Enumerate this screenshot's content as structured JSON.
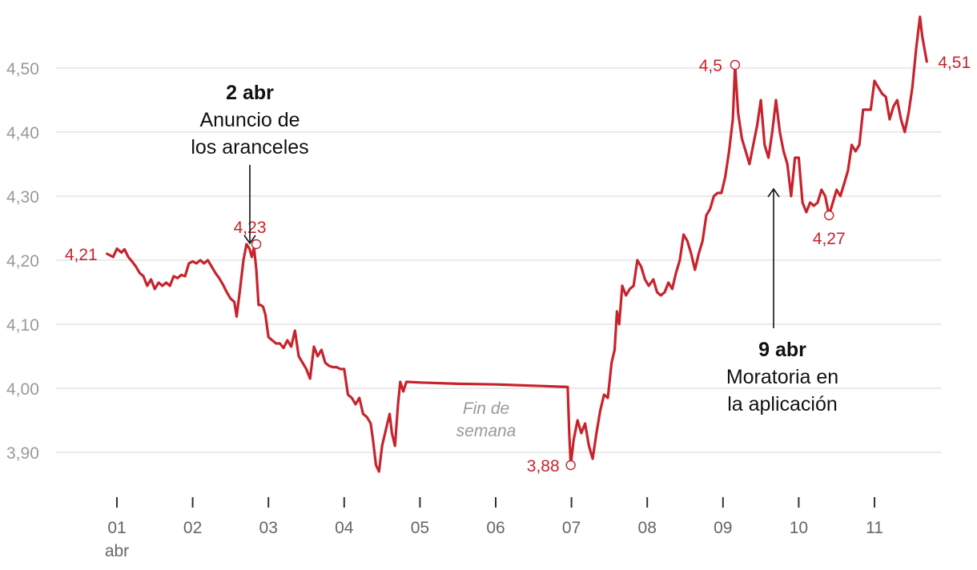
{
  "chart_data": {
    "type": "line",
    "title": "",
    "xlabel": "",
    "ylabel": "",
    "ylim": [
      3.83,
      4.56
    ],
    "y_ticks": [
      {
        "value": 3.9,
        "label": "3,90"
      },
      {
        "value": 4.0,
        "label": "4,00"
      },
      {
        "value": 4.1,
        "label": "4,10"
      },
      {
        "value": 4.2,
        "label": "4,20"
      },
      {
        "value": 4.3,
        "label": "4,30"
      },
      {
        "value": 4.4,
        "label": "4,40"
      },
      {
        "value": 4.5,
        "label": "4,50"
      }
    ],
    "x_ticks": [
      {
        "day": 1,
        "label": "01",
        "sublabel": "abr"
      },
      {
        "day": 2,
        "label": "02",
        "sublabel": ""
      },
      {
        "day": 3,
        "label": "03",
        "sublabel": ""
      },
      {
        "day": 4,
        "label": "04",
        "sublabel": ""
      },
      {
        "day": 5,
        "label": "05",
        "sublabel": ""
      },
      {
        "day": 6,
        "label": "06",
        "sublabel": ""
      },
      {
        "day": 7,
        "label": "07",
        "sublabel": ""
      },
      {
        "day": 8,
        "label": "08",
        "sublabel": ""
      },
      {
        "day": 9,
        "label": "09",
        "sublabel": ""
      },
      {
        "day": 10,
        "label": "10",
        "sublabel": ""
      },
      {
        "day": 11,
        "label": "11",
        "sublabel": ""
      }
    ],
    "series": [
      {
        "color": "#c8232c",
        "points": [
          [
            0.87,
            4.21
          ],
          [
            0.95,
            4.205
          ],
          [
            1.0,
            4.218
          ],
          [
            1.06,
            4.212
          ],
          [
            1.1,
            4.217
          ],
          [
            1.15,
            4.205
          ],
          [
            1.2,
            4.198
          ],
          [
            1.25,
            4.19
          ],
          [
            1.3,
            4.18
          ],
          [
            1.35,
            4.175
          ],
          [
            1.4,
            4.16
          ],
          [
            1.45,
            4.17
          ],
          [
            1.5,
            4.155
          ],
          [
            1.55,
            4.165
          ],
          [
            1.6,
            4.16
          ],
          [
            1.65,
            4.165
          ],
          [
            1.7,
            4.16
          ],
          [
            1.75,
            4.175
          ],
          [
            1.8,
            4.172
          ],
          [
            1.85,
            4.177
          ],
          [
            1.9,
            4.175
          ],
          [
            1.95,
            4.195
          ],
          [
            2.0,
            4.198
          ],
          [
            2.05,
            4.195
          ],
          [
            2.1,
            4.2
          ],
          [
            2.15,
            4.195
          ],
          [
            2.2,
            4.2
          ],
          [
            2.25,
            4.19
          ],
          [
            2.3,
            4.18
          ],
          [
            2.35,
            4.172
          ],
          [
            2.4,
            4.162
          ],
          [
            2.45,
            4.15
          ],
          [
            2.5,
            4.14
          ],
          [
            2.55,
            4.135
          ],
          [
            2.58,
            4.112
          ],
          [
            2.62,
            4.15
          ],
          [
            2.67,
            4.2
          ],
          [
            2.71,
            4.225
          ],
          [
            2.75,
            4.218
          ],
          [
            2.78,
            4.205
          ],
          [
            2.81,
            4.22
          ],
          [
            2.84,
            4.185
          ],
          [
            2.87,
            4.13
          ],
          [
            2.9,
            4.13
          ],
          [
            2.93,
            4.127
          ],
          [
            2.96,
            4.115
          ],
          [
            3.0,
            4.08
          ],
          [
            3.05,
            4.075
          ],
          [
            3.1,
            4.07
          ],
          [
            3.15,
            4.07
          ],
          [
            3.2,
            4.063
          ],
          [
            3.25,
            4.075
          ],
          [
            3.3,
            4.065
          ],
          [
            3.35,
            4.09
          ],
          [
            3.4,
            4.05
          ],
          [
            3.45,
            4.04
          ],
          [
            3.5,
            4.03
          ],
          [
            3.55,
            4.015
          ],
          [
            3.6,
            4.065
          ],
          [
            3.65,
            4.05
          ],
          [
            3.7,
            4.06
          ],
          [
            3.75,
            4.04
          ],
          [
            3.8,
            4.035
          ],
          [
            3.85,
            4.033
          ],
          [
            3.9,
            4.033
          ],
          [
            3.95,
            4.03
          ],
          [
            4.0,
            4.03
          ],
          [
            4.05,
            3.99
          ],
          [
            4.1,
            3.985
          ],
          [
            4.15,
            3.975
          ],
          [
            4.2,
            3.985
          ],
          [
            4.25,
            3.96
          ],
          [
            4.3,
            3.955
          ],
          [
            4.35,
            3.945
          ],
          [
            4.38,
            3.92
          ],
          [
            4.42,
            3.88
          ],
          [
            4.46,
            3.87
          ],
          [
            4.5,
            3.91
          ],
          [
            4.55,
            3.935
          ],
          [
            4.6,
            3.96
          ],
          [
            4.63,
            3.93
          ],
          [
            4.67,
            3.91
          ],
          [
            4.71,
            3.975
          ],
          [
            4.74,
            4.01
          ],
          [
            4.78,
            3.995
          ],
          [
            4.82,
            4.01
          ],
          [
            5.0,
            4.009
          ],
          [
            5.5,
            4.007
          ],
          [
            6.0,
            4.006
          ],
          [
            6.5,
            4.004
          ],
          [
            6.95,
            4.002
          ],
          [
            6.97,
            3.93
          ],
          [
            6.99,
            3.88
          ],
          [
            7.03,
            3.92
          ],
          [
            7.08,
            3.95
          ],
          [
            7.13,
            3.93
          ],
          [
            7.18,
            3.945
          ],
          [
            7.23,
            3.91
          ],
          [
            7.28,
            3.89
          ],
          [
            7.33,
            3.93
          ],
          [
            7.38,
            3.965
          ],
          [
            7.43,
            3.99
          ],
          [
            7.48,
            3.985
          ],
          [
            7.53,
            4.04
          ],
          [
            7.57,
            4.06
          ],
          [
            7.6,
            4.12
          ],
          [
            7.63,
            4.1
          ],
          [
            7.67,
            4.16
          ],
          [
            7.72,
            4.145
          ],
          [
            7.77,
            4.155
          ],
          [
            7.82,
            4.16
          ],
          [
            7.87,
            4.2
          ],
          [
            7.92,
            4.19
          ],
          [
            7.97,
            4.17
          ],
          [
            8.02,
            4.16
          ],
          [
            8.08,
            4.17
          ],
          [
            8.13,
            4.15
          ],
          [
            8.18,
            4.145
          ],
          [
            8.23,
            4.15
          ],
          [
            8.28,
            4.165
          ],
          [
            8.33,
            4.155
          ],
          [
            8.38,
            4.18
          ],
          [
            8.43,
            4.2
          ],
          [
            8.48,
            4.24
          ],
          [
            8.53,
            4.23
          ],
          [
            8.58,
            4.21
          ],
          [
            8.63,
            4.185
          ],
          [
            8.68,
            4.21
          ],
          [
            8.73,
            4.23
          ],
          [
            8.78,
            4.27
          ],
          [
            8.83,
            4.28
          ],
          [
            8.88,
            4.3
          ],
          [
            8.93,
            4.305
          ],
          [
            8.98,
            4.305
          ],
          [
            9.03,
            4.33
          ],
          [
            9.08,
            4.37
          ],
          [
            9.13,
            4.42
          ],
          [
            9.16,
            4.505
          ],
          [
            9.2,
            4.43
          ],
          [
            9.25,
            4.39
          ],
          [
            9.3,
            4.37
          ],
          [
            9.35,
            4.35
          ],
          [
            9.4,
            4.38
          ],
          [
            9.45,
            4.41
          ],
          [
            9.5,
            4.45
          ],
          [
            9.55,
            4.38
          ],
          [
            9.6,
            4.36
          ],
          [
            9.65,
            4.4
          ],
          [
            9.7,
            4.45
          ],
          [
            9.75,
            4.4
          ],
          [
            9.8,
            4.37
          ],
          [
            9.85,
            4.35
          ],
          [
            9.9,
            4.3
          ],
          [
            9.95,
            4.36
          ],
          [
            10.0,
            4.36
          ],
          [
            10.05,
            4.29
          ],
          [
            10.1,
            4.275
          ],
          [
            10.15,
            4.29
          ],
          [
            10.2,
            4.285
          ],
          [
            10.25,
            4.29
          ],
          [
            10.3,
            4.31
          ],
          [
            10.35,
            4.3
          ],
          [
            10.4,
            4.27
          ],
          [
            10.45,
            4.29
          ],
          [
            10.5,
            4.31
          ],
          [
            10.55,
            4.3
          ],
          [
            10.6,
            4.32
          ],
          [
            10.65,
            4.34
          ],
          [
            10.7,
            4.38
          ],
          [
            10.75,
            4.37
          ],
          [
            10.8,
            4.38
          ],
          [
            10.85,
            4.435
          ],
          [
            10.9,
            4.435
          ],
          [
            10.95,
            4.435
          ],
          [
            11.0,
            4.48
          ],
          [
            11.05,
            4.47
          ],
          [
            11.1,
            4.46
          ],
          [
            11.15,
            4.455
          ],
          [
            11.2,
            4.42
          ],
          [
            11.25,
            4.44
          ],
          [
            11.3,
            4.45
          ],
          [
            11.35,
            4.42
          ],
          [
            11.4,
            4.4
          ],
          [
            11.45,
            4.43
          ],
          [
            11.5,
            4.47
          ],
          [
            11.55,
            4.53
          ],
          [
            11.6,
            4.58
          ],
          [
            11.63,
            4.55
          ],
          [
            11.66,
            4.53
          ],
          [
            11.69,
            4.51
          ]
        ]
      }
    ],
    "value_labels": [
      {
        "x": 0.87,
        "y": 4.21,
        "text": "4,21",
        "marker": false
      },
      {
        "x": 2.84,
        "y": 4.225,
        "text": "4,23",
        "marker": true
      },
      {
        "x": 6.99,
        "y": 3.88,
        "text": "3,88",
        "marker": true
      },
      {
        "x": 9.16,
        "y": 4.505,
        "text": "4,5",
        "marker": true
      },
      {
        "x": 10.4,
        "y": 4.27,
        "text": "4,27",
        "marker": true
      },
      {
        "x": 11.69,
        "y": 4.51,
        "text": "4,51",
        "marker": false
      }
    ],
    "annotations": [
      {
        "title": "2 abr",
        "lines": [
          "Anuncio de",
          "los aranceles"
        ],
        "x": 2.78,
        "y": 4.225
      },
      {
        "title": "9 abr",
        "lines": [
          "Moratoria en",
          "la aplicación"
        ],
        "x": 9.7,
        "y": 4.315
      }
    ],
    "note": {
      "lines": [
        "Fin de",
        "semana"
      ]
    },
    "grid": true
  }
}
